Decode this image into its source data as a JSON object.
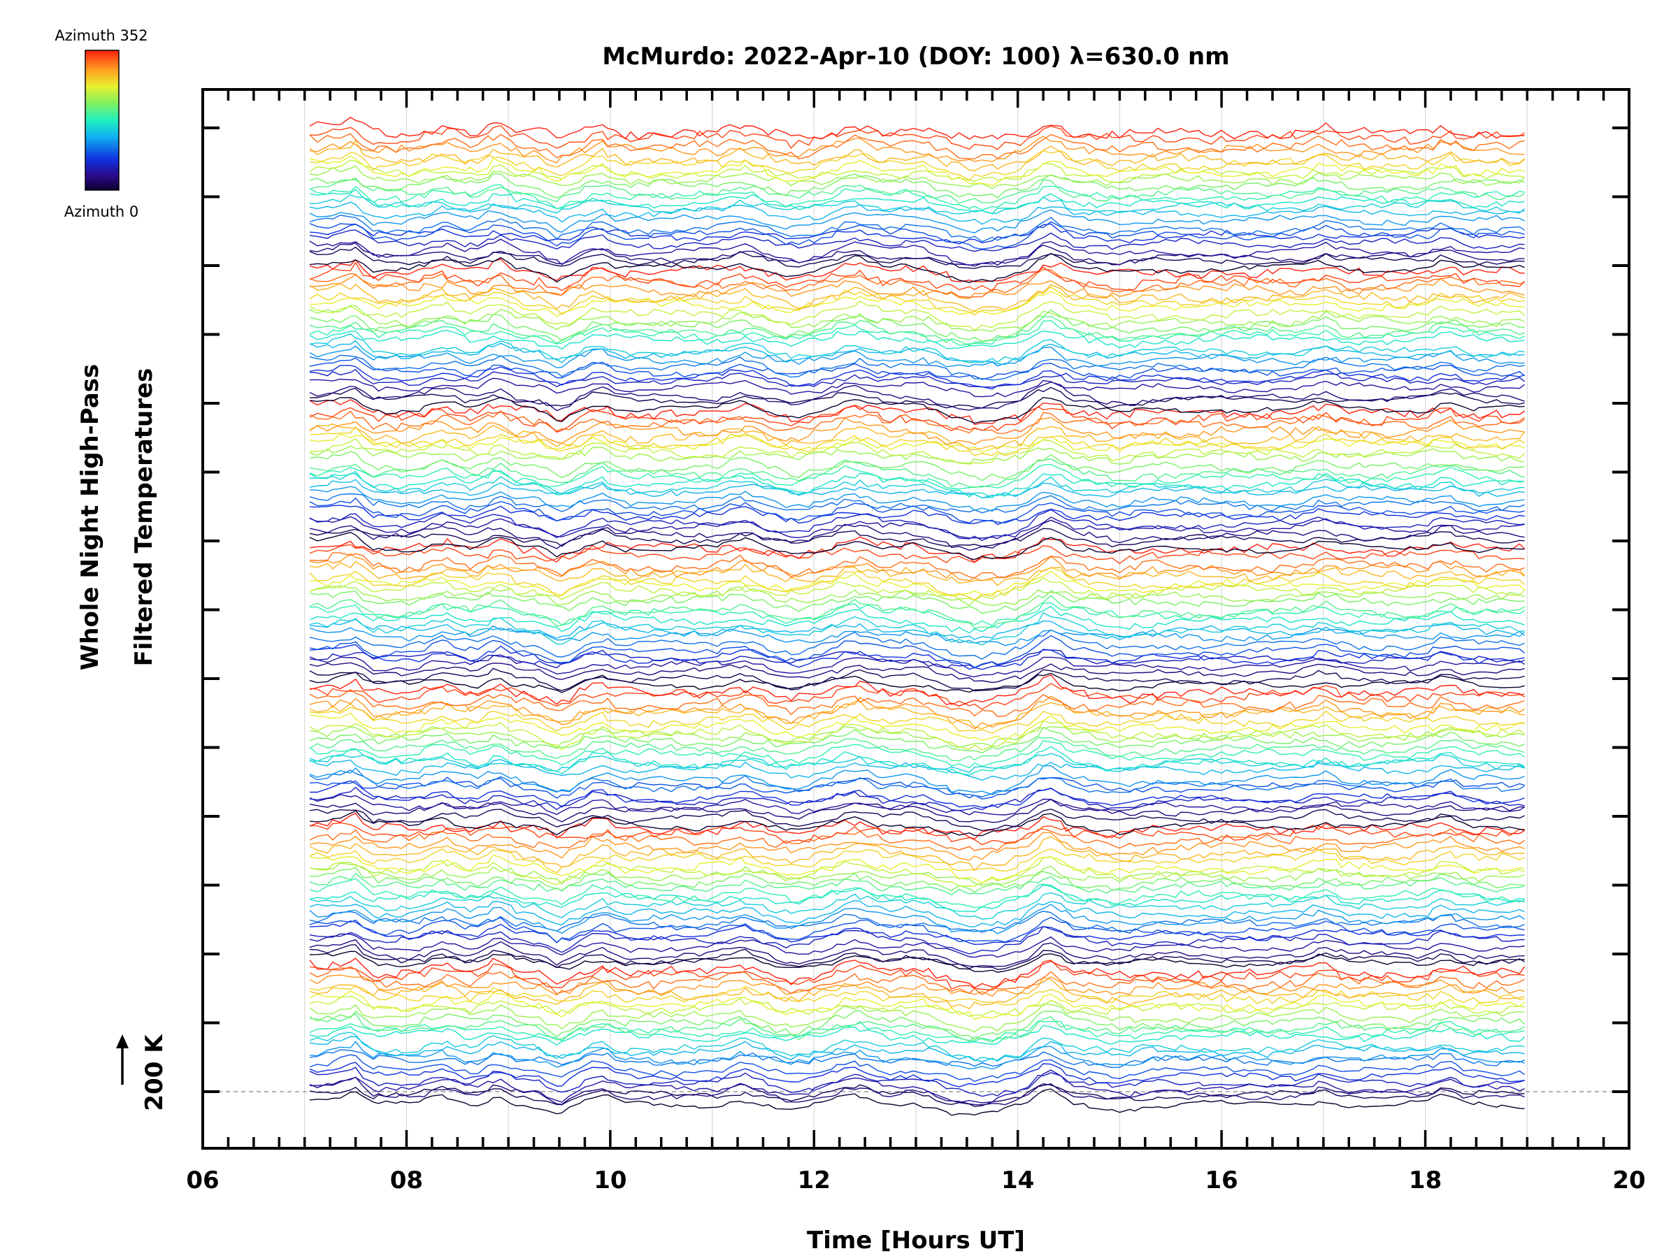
{
  "chart_data": {
    "type": "line",
    "title": "McMurdo: 2022-Apr-10 (DOY: 100) λ=630.0 nm",
    "xlabel": "Time [Hours UT]",
    "ylabel_lines": [
      "Whole Night High-Pass",
      "Filtered Temperatures"
    ],
    "scale_marker_label": "200 K",
    "xlim": [
      6,
      20
    ],
    "x_ticks": [
      "06",
      "08",
      "10",
      "12",
      "14",
      "16",
      "18",
      "20"
    ],
    "x_tick_values": [
      6,
      8,
      10,
      12,
      14,
      16,
      18,
      20
    ],
    "x_data_range": [
      7.05,
      19.0
    ],
    "grid": true,
    "colorbar": {
      "top_label": "Azimuth 352",
      "bottom_label": "Azimuth 0",
      "colormap": "rainbow"
    },
    "series_groups": 7,
    "series_per_group": 24,
    "series_description": "High-pass filtered temperature traces, vertically offset, colored by azimuth (0-352 deg)",
    "common_features": {
      "drop_near_hours": [
        7.5,
        8.0
      ],
      "bumps_near_hours": [
        8.3,
        8.9,
        9.5,
        9.9,
        11.3,
        11.8,
        12.4,
        13.0,
        14.3,
        15.2,
        15.8,
        17.0,
        18.2
      ],
      "dip_near_hours": [
        13.5,
        14.0
      ]
    },
    "colors": {
      "axes": "#000000",
      "grid": "#d9d9d9",
      "baseline": "#999999",
      "background": "#ffffff"
    }
  }
}
